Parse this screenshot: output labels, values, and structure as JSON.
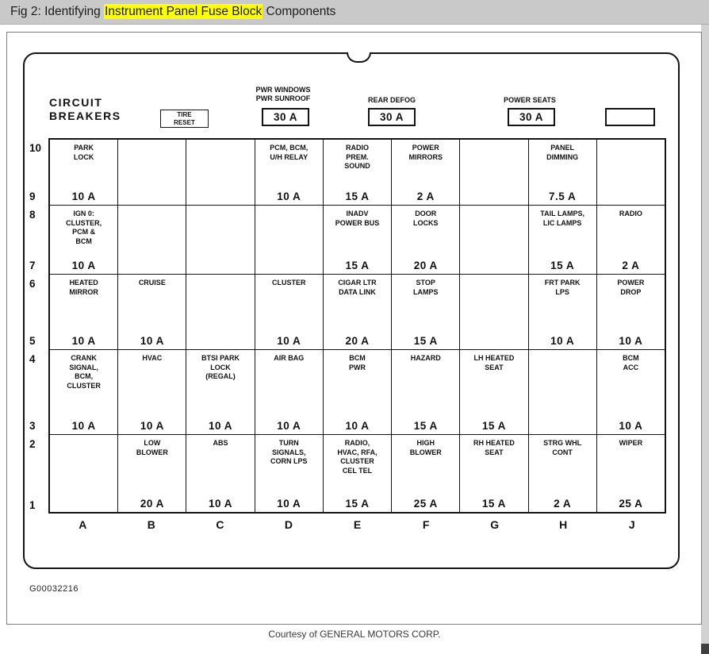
{
  "page": {
    "header": {
      "pre": "Fig 2: Identifying ",
      "highlight": "Instrument Panel Fuse Block",
      "post": " Components"
    },
    "footer": {
      "figure_id": "G00032216",
      "courtesy": "Courtesy of GENERAL MOTORS CORP."
    }
  },
  "colors": {
    "highlight": "#ffff00",
    "titlebar_bg": "#c9c9c9",
    "line": "#141414"
  },
  "fuse_block": {
    "circuit_breakers": "CIRCUIT\nBREAKERS",
    "tire_reset": "TIRE\nRESET",
    "breakers": [
      {
        "label": "PWR WINDOWS\nPWR SUNROOF",
        "amp": "30 A"
      },
      {
        "label": "REAR DEFOG",
        "amp": "30 A"
      },
      {
        "label": "POWER SEATS",
        "amp": "30 A"
      }
    ],
    "spare_box": "",
    "column_letters": [
      "A",
      "B",
      "C",
      "D",
      "E",
      "F",
      "G",
      "H",
      "J"
    ],
    "rows": [
      {
        "top_num": "10",
        "bottom_num": "9",
        "cells": [
          {
            "label": "PARK\nLOCK",
            "amp": "10 A"
          },
          {
            "label": "",
            "amp": ""
          },
          {
            "label": "",
            "amp": ""
          },
          {
            "label": "PCM, BCM,\nU/H RELAY",
            "amp": "10 A"
          },
          {
            "label": "RADIO\nPREM.\nSOUND",
            "amp": "15 A"
          },
          {
            "label": "POWER\nMIRRORS",
            "amp": "2 A"
          },
          {
            "label": "",
            "amp": ""
          },
          {
            "label": "PANEL\nDIMMING",
            "amp": "7.5 A"
          },
          {
            "label": "",
            "amp": ""
          }
        ]
      },
      {
        "top_num": "8",
        "bottom_num": "7",
        "cells": [
          {
            "label": "IGN 0:\nCLUSTER,\nPCM &\nBCM",
            "amp": "10 A"
          },
          {
            "label": "",
            "amp": ""
          },
          {
            "label": "",
            "amp": ""
          },
          {
            "label": "",
            "amp": ""
          },
          {
            "label": "INADV\nPOWER BUS",
            "amp": "15 A"
          },
          {
            "label": "DOOR\nLOCKS",
            "amp": "20 A"
          },
          {
            "label": "",
            "amp": ""
          },
          {
            "label": "TAIL LAMPS,\nLIC LAMPS",
            "amp": "15 A"
          },
          {
            "label": "RADIO",
            "amp": "2 A"
          }
        ]
      },
      {
        "top_num": "6",
        "bottom_num": "5",
        "cells": [
          {
            "label": "HEATED\nMIRROR",
            "amp": "10 A"
          },
          {
            "label": "CRUISE",
            "amp": "10 A"
          },
          {
            "label": "",
            "amp": ""
          },
          {
            "label": "CLUSTER",
            "amp": "10 A"
          },
          {
            "label": "CIGAR LTR\nDATA LINK",
            "amp": "20 A"
          },
          {
            "label": "STOP\nLAMPS",
            "amp": "15 A"
          },
          {
            "label": "",
            "amp": ""
          },
          {
            "label": "FRT PARK\nLPS",
            "amp": "10 A"
          },
          {
            "label": "POWER\nDROP",
            "amp": "10 A"
          }
        ]
      },
      {
        "top_num": "4",
        "bottom_num": "3",
        "cells": [
          {
            "label": "CRANK\nSIGNAL,\nBCM,\nCLUSTER",
            "amp": "10 A"
          },
          {
            "label": "HVAC",
            "amp": "10 A"
          },
          {
            "label": "BTSI PARK\nLOCK\n(REGAL)",
            "amp": "10 A"
          },
          {
            "label": "AIR BAG",
            "amp": "10 A"
          },
          {
            "label": "BCM\nPWR",
            "amp": "10 A"
          },
          {
            "label": "HAZARD",
            "amp": "15 A"
          },
          {
            "label": "LH HEATED\nSEAT",
            "amp": "15 A"
          },
          {
            "label": "",
            "amp": ""
          },
          {
            "label": "BCM\nACC",
            "amp": "10 A"
          }
        ]
      },
      {
        "top_num": "2",
        "bottom_num": "1",
        "cells": [
          {
            "label": "",
            "amp": ""
          },
          {
            "label": "LOW\nBLOWER",
            "amp": "20 A"
          },
          {
            "label": "ABS",
            "amp": "10 A"
          },
          {
            "label": "TURN\nSIGNALS,\nCORN LPS",
            "amp": "10 A"
          },
          {
            "label": "RADIO,\nHVAC, RFA,\nCLUSTER\nCEL TEL",
            "amp": "15 A"
          },
          {
            "label": "HIGH\nBLOWER",
            "amp": "25 A"
          },
          {
            "label": "RH HEATED\nSEAT",
            "amp": "15 A"
          },
          {
            "label": "STRG WHL\nCONT",
            "amp": "2 A"
          },
          {
            "label": "WIPER",
            "amp": "25 A"
          }
        ]
      }
    ]
  }
}
